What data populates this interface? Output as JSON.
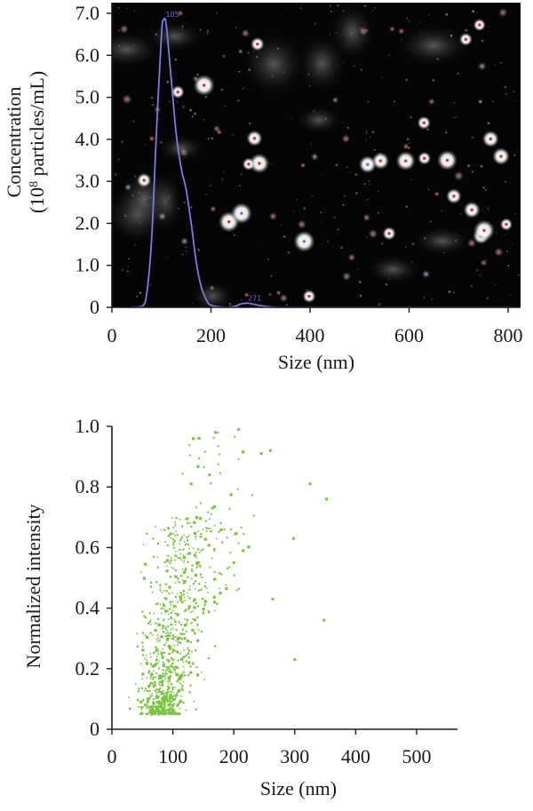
{
  "chart_data": [
    {
      "type": "line",
      "xlabel": "Size (nm)",
      "ylabel": "Concentration",
      "ylabel_line2": "(10",
      "ylabel_sup": "8",
      "ylabel_line2_tail": " particles/mL)",
      "xlim": [
        0,
        800
      ],
      "ylim": [
        0,
        7.0
      ],
      "xticks": [
        0,
        200,
        400,
        600,
        800
      ],
      "yticks": [
        0,
        1.0,
        2.0,
        3.0,
        4.0,
        5.0,
        6.0,
        7.0
      ],
      "ytick_labels": [
        "0",
        "1.0",
        "2.0",
        "3.0",
        "4.0",
        "5.0",
        "6.0",
        "7.0"
      ],
      "xtick_labels": [
        "0",
        "200",
        "400",
        "600",
        "800"
      ],
      "background": "micrograph of nanoparticles on black field",
      "series": [
        {
          "color": "#7b7be0",
          "x": [
            40,
            60,
            70,
            80,
            90,
            100,
            105,
            110,
            120,
            130,
            140,
            150,
            160,
            170,
            180,
            190,
            200,
            230,
            250,
            260,
            271,
            280,
            300,
            320,
            340,
            400,
            500,
            600,
            700,
            800
          ],
          "y": [
            0.0,
            0.02,
            0.3,
            1.6,
            4.2,
            6.5,
            6.85,
            6.7,
            5.4,
            4.1,
            3.3,
            2.8,
            2.0,
            1.1,
            0.5,
            0.2,
            0.05,
            0.0,
            0.03,
            0.08,
            0.1,
            0.09,
            0.04,
            0.01,
            0.0,
            0.0,
            0.0,
            0.0,
            0.0,
            0.0
          ]
        }
      ],
      "annotations": [
        {
          "x": 105,
          "y": 6.85,
          "text": "105"
        },
        {
          "x": 271,
          "y": 0.1,
          "text": "271"
        }
      ]
    },
    {
      "type": "scatter",
      "xlabel": "Size (nm)",
      "ylabel": "Normalized intensity",
      "xlim": [
        0,
        560
      ],
      "ylim": [
        0,
        1.0
      ],
      "xticks": [
        0,
        100,
        200,
        300,
        400,
        500
      ],
      "xtick_labels": [
        "0",
        "100",
        "200",
        "300",
        "400",
        "500"
      ],
      "yticks": [
        0,
        0.2,
        0.4,
        0.6,
        0.8,
        1.0
      ],
      "ytick_labels": [
        "0",
        "0.2",
        "0.4",
        "0.6",
        "0.8",
        "1.0"
      ],
      "series": [
        {
          "color": "#7dc242",
          "n_points": 900,
          "sample_points": [
            {
              "x": 95,
              "y": 0.1
            },
            {
              "x": 120,
              "y": 0.3
            },
            {
              "x": 170,
              "y": 0.98
            },
            {
              "x": 208,
              "y": 0.99
            },
            {
              "x": 245,
              "y": 0.91
            },
            {
              "x": 260,
              "y": 0.92
            },
            {
              "x": 325,
              "y": 0.81
            },
            {
              "x": 352,
              "y": 0.76
            },
            {
              "x": 298,
              "y": 0.63
            },
            {
              "x": 264,
              "y": 0.43
            },
            {
              "x": 348,
              "y": 0.36
            },
            {
              "x": 300,
              "y": 0.23
            },
            {
              "x": 160,
              "y": 0.84
            },
            {
              "x": 130,
              "y": 0.81
            },
            {
              "x": 165,
              "y": 0.73
            },
            {
              "x": 200,
              "y": 0.55
            }
          ]
        }
      ]
    }
  ]
}
